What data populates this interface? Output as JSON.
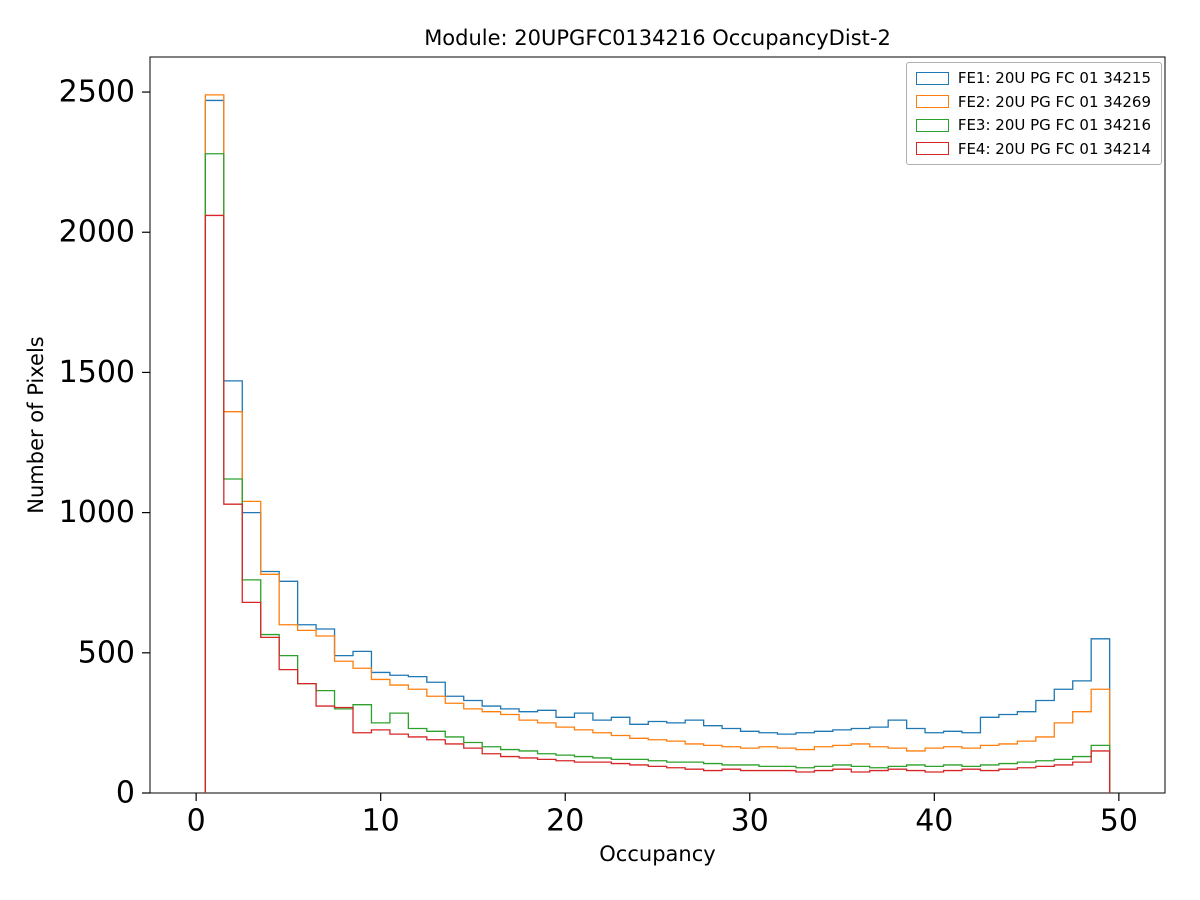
{
  "figure": {
    "title": "Module: 20UPGFC0134216 OccupancyDist-2",
    "xlabel": "Occupancy",
    "ylabel": "Number of Pixels"
  },
  "chart_data": {
    "type": "step-histogram",
    "title": "Module: 20UPGFC0134216 OccupancyDist-2",
    "xlabel": "Occupancy",
    "ylabel": "Number of Pixels",
    "xlim": [
      -2.5,
      52.5
    ],
    "ylim": [
      0,
      2625
    ],
    "xticks": [
      0,
      10,
      20,
      30,
      40,
      50
    ],
    "yticks": [
      0,
      500,
      1000,
      1500,
      2000,
      2500
    ],
    "grid": false,
    "legend_position": "upper right",
    "bin_start": 0.5,
    "bin_width": 1,
    "series": [
      {
        "name": "FE1: 20U PG FC 01 34215",
        "color": "#1f77b4",
        "values": [
          2470,
          1470,
          1000,
          790,
          755,
          600,
          585,
          490,
          505,
          430,
          420,
          415,
          395,
          345,
          330,
          310,
          300,
          290,
          295,
          270,
          285,
          260,
          270,
          245,
          255,
          250,
          260,
          240,
          230,
          220,
          215,
          210,
          215,
          220,
          225,
          230,
          235,
          260,
          230,
          215,
          220,
          215,
          270,
          280,
          290,
          330,
          370,
          400,
          550
        ]
      },
      {
        "name": "FE2: 20U PG FC 01 34269",
        "color": "#ff7f0e",
        "values": [
          2490,
          1360,
          1040,
          780,
          600,
          580,
          560,
          470,
          445,
          405,
          385,
          370,
          345,
          320,
          300,
          290,
          280,
          260,
          250,
          235,
          225,
          215,
          205,
          195,
          190,
          185,
          175,
          170,
          165,
          160,
          165,
          160,
          155,
          165,
          170,
          175,
          165,
          160,
          150,
          160,
          165,
          160,
          170,
          175,
          185,
          200,
          250,
          290,
          370
        ]
      },
      {
        "name": "FE3: 20U PG FC 01 34216",
        "color": "#2ca02c",
        "values": [
          2280,
          1120,
          760,
          565,
          490,
          390,
          365,
          300,
          315,
          250,
          285,
          230,
          220,
          200,
          180,
          165,
          155,
          150,
          140,
          135,
          130,
          125,
          120,
          120,
          115,
          110,
          110,
          105,
          100,
          100,
          95,
          95,
          90,
          95,
          100,
          95,
          90,
          95,
          100,
          95,
          100,
          95,
          100,
          105,
          110,
          115,
          120,
          130,
          170
        ]
      },
      {
        "name": "FE4: 20U PG FC 01 34214",
        "color": "#d62728",
        "values": [
          2060,
          1030,
          680,
          555,
          440,
          390,
          310,
          305,
          215,
          225,
          210,
          200,
          190,
          175,
          160,
          140,
          130,
          125,
          120,
          115,
          110,
          110,
          105,
          100,
          95,
          90,
          85,
          80,
          85,
          80,
          80,
          80,
          75,
          80,
          85,
          75,
          80,
          85,
          80,
          75,
          80,
          85,
          80,
          85,
          90,
          95,
          100,
          110,
          150
        ]
      }
    ]
  }
}
